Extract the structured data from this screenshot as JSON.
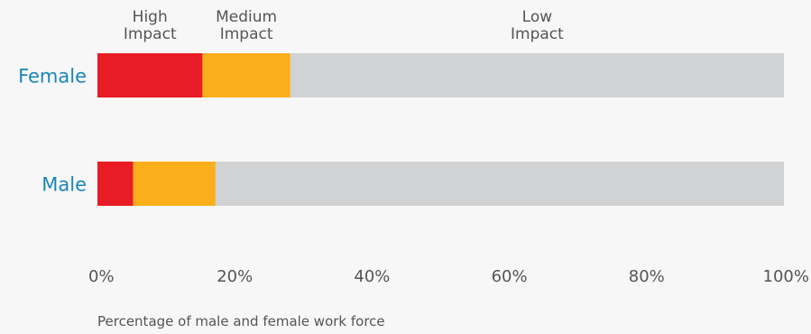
{
  "chart_data": {
    "type": "bar",
    "orientation": "horizontal",
    "stacked": true,
    "categories": [
      "Female",
      "Male"
    ],
    "series": [
      {
        "name": "High Impact",
        "values": [
          15.3,
          5.2
        ],
        "color": "#e81c24"
      },
      {
        "name": "Medium Impact",
        "values": [
          12.8,
          12.0
        ],
        "color": "#fbae1b"
      },
      {
        "name": "Low Impact",
        "values": [
          71.9,
          82.8
        ],
        "color": "#d1d2d4"
      }
    ],
    "legend": {
      "placement": "top",
      "labels": [
        [
          "High",
          "Impact"
        ],
        [
          "Medium",
          "Impact"
        ],
        [
          "Low",
          "Impact"
        ]
      ]
    },
    "xlim": [
      0,
      100
    ],
    "xticks": [
      "0%",
      "20%",
      "40%",
      "60%",
      "80%",
      "100%"
    ],
    "xlabel": "Percentage of male and female work force",
    "grid": false
  }
}
